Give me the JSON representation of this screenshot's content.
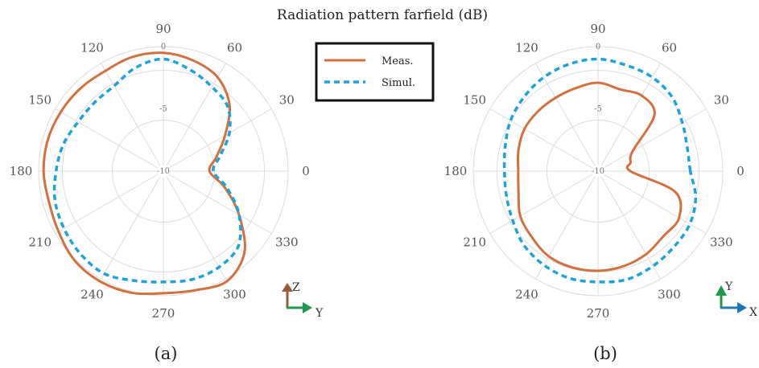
{
  "figure": {
    "title": "Radiation pattern farfield (dB)",
    "axes_a": {
      "up": "Z",
      "right": "Y"
    },
    "axes_b": {
      "up": "Y",
      "right": "X"
    }
  },
  "colors": {
    "measured": "#d2713e",
    "simulated": "#1ca4d8",
    "grid": "#dcdcdc",
    "axis_z": "#9a5a3a",
    "axis_y": "#1a9a4a",
    "axis_x": "#1a7ab8"
  },
  "chart_data": [
    {
      "type": "polar",
      "caption": "(a)",
      "title": "Radiation pattern farfield (dB)",
      "angle_ticks": [
        0,
        30,
        60,
        90,
        120,
        150,
        180,
        210,
        240,
        270,
        300,
        330
      ],
      "radial_ticks": [
        -10,
        -5,
        0
      ],
      "rlim": [
        -10,
        0
      ],
      "legend": "top-right",
      "series": [
        {
          "name": "Meas.",
          "style": "solid",
          "theta": [
            0,
            15,
            30,
            45,
            60,
            75,
            90,
            105,
            120,
            135,
            150,
            165,
            180,
            195,
            210,
            225,
            240,
            255,
            270,
            285,
            300,
            315,
            330,
            345
          ],
          "r": [
            -6.3,
            -5.6,
            -4.3,
            -2.5,
            -1.3,
            -0.8,
            -0.5,
            -0.5,
            -0.7,
            -0.6,
            -0.5,
            -0.4,
            -0.4,
            -0.5,
            -0.3,
            0.1,
            0.2,
            0.1,
            -0.2,
            -0.1,
            0.2,
            -0.8,
            -3.0,
            -4.9
          ]
        },
        {
          "name": "Simul.",
          "style": "dashed",
          "theta": [
            0,
            15,
            30,
            45,
            60,
            75,
            90,
            105,
            120,
            135,
            150,
            165,
            180,
            195,
            210,
            225,
            240,
            255,
            270,
            285,
            300,
            315,
            330,
            345
          ],
          "r": [
            -6.0,
            -5.3,
            -3.9,
            -2.7,
            -2.2,
            -1.6,
            -1.0,
            -1.4,
            -2.1,
            -2.2,
            -2.1,
            -1.7,
            -1.4,
            -1.0,
            -0.8,
            -0.6,
            -0.5,
            -0.9,
            -1.1,
            -1.0,
            -1.1,
            -1.5,
            -3.0,
            -4.7
          ]
        }
      ]
    },
    {
      "type": "polar",
      "caption": "(b)",
      "angle_ticks": [
        0,
        30,
        60,
        90,
        120,
        150,
        180,
        210,
        240,
        270,
        300,
        330
      ],
      "radial_ticks": [
        -10,
        -5,
        0
      ],
      "rlim": [
        -10,
        0
      ],
      "series": [
        {
          "name": "Meas.",
          "style": "solid",
          "theta": [
            0,
            15,
            30,
            45,
            60,
            75,
            90,
            105,
            120,
            135,
            150,
            165,
            180,
            195,
            210,
            225,
            240,
            255,
            270,
            285,
            300,
            315,
            330,
            345
          ],
          "r": [
            -7.4,
            -7.3,
            -6.8,
            -3.6,
            -3.0,
            -3.2,
            -2.9,
            -3.1,
            -3.2,
            -3.2,
            -3.2,
            -3.4,
            -3.6,
            -3.4,
            -2.8,
            -2.5,
            -2.1,
            -2.0,
            -2.0,
            -2.1,
            -2.3,
            -2.6,
            -2.5,
            -3.6
          ]
        },
        {
          "name": "Simul.",
          "style": "dashed",
          "theta": [
            0,
            15,
            30,
            45,
            60,
            75,
            90,
            105,
            120,
            135,
            150,
            165,
            180,
            195,
            210,
            225,
            240,
            255,
            270,
            285,
            300,
            315,
            330,
            345
          ],
          "r": [
            -2.6,
            -2.6,
            -2.2,
            -1.6,
            -1.3,
            -1.2,
            -1.0,
            -1.1,
            -1.3,
            -1.6,
            -1.9,
            -2.3,
            -2.5,
            -2.4,
            -2.1,
            -1.6,
            -1.3,
            -1.1,
            -1.1,
            -1.0,
            -1.2,
            -1.4,
            -1.5,
            -1.9
          ]
        }
      ]
    }
  ]
}
